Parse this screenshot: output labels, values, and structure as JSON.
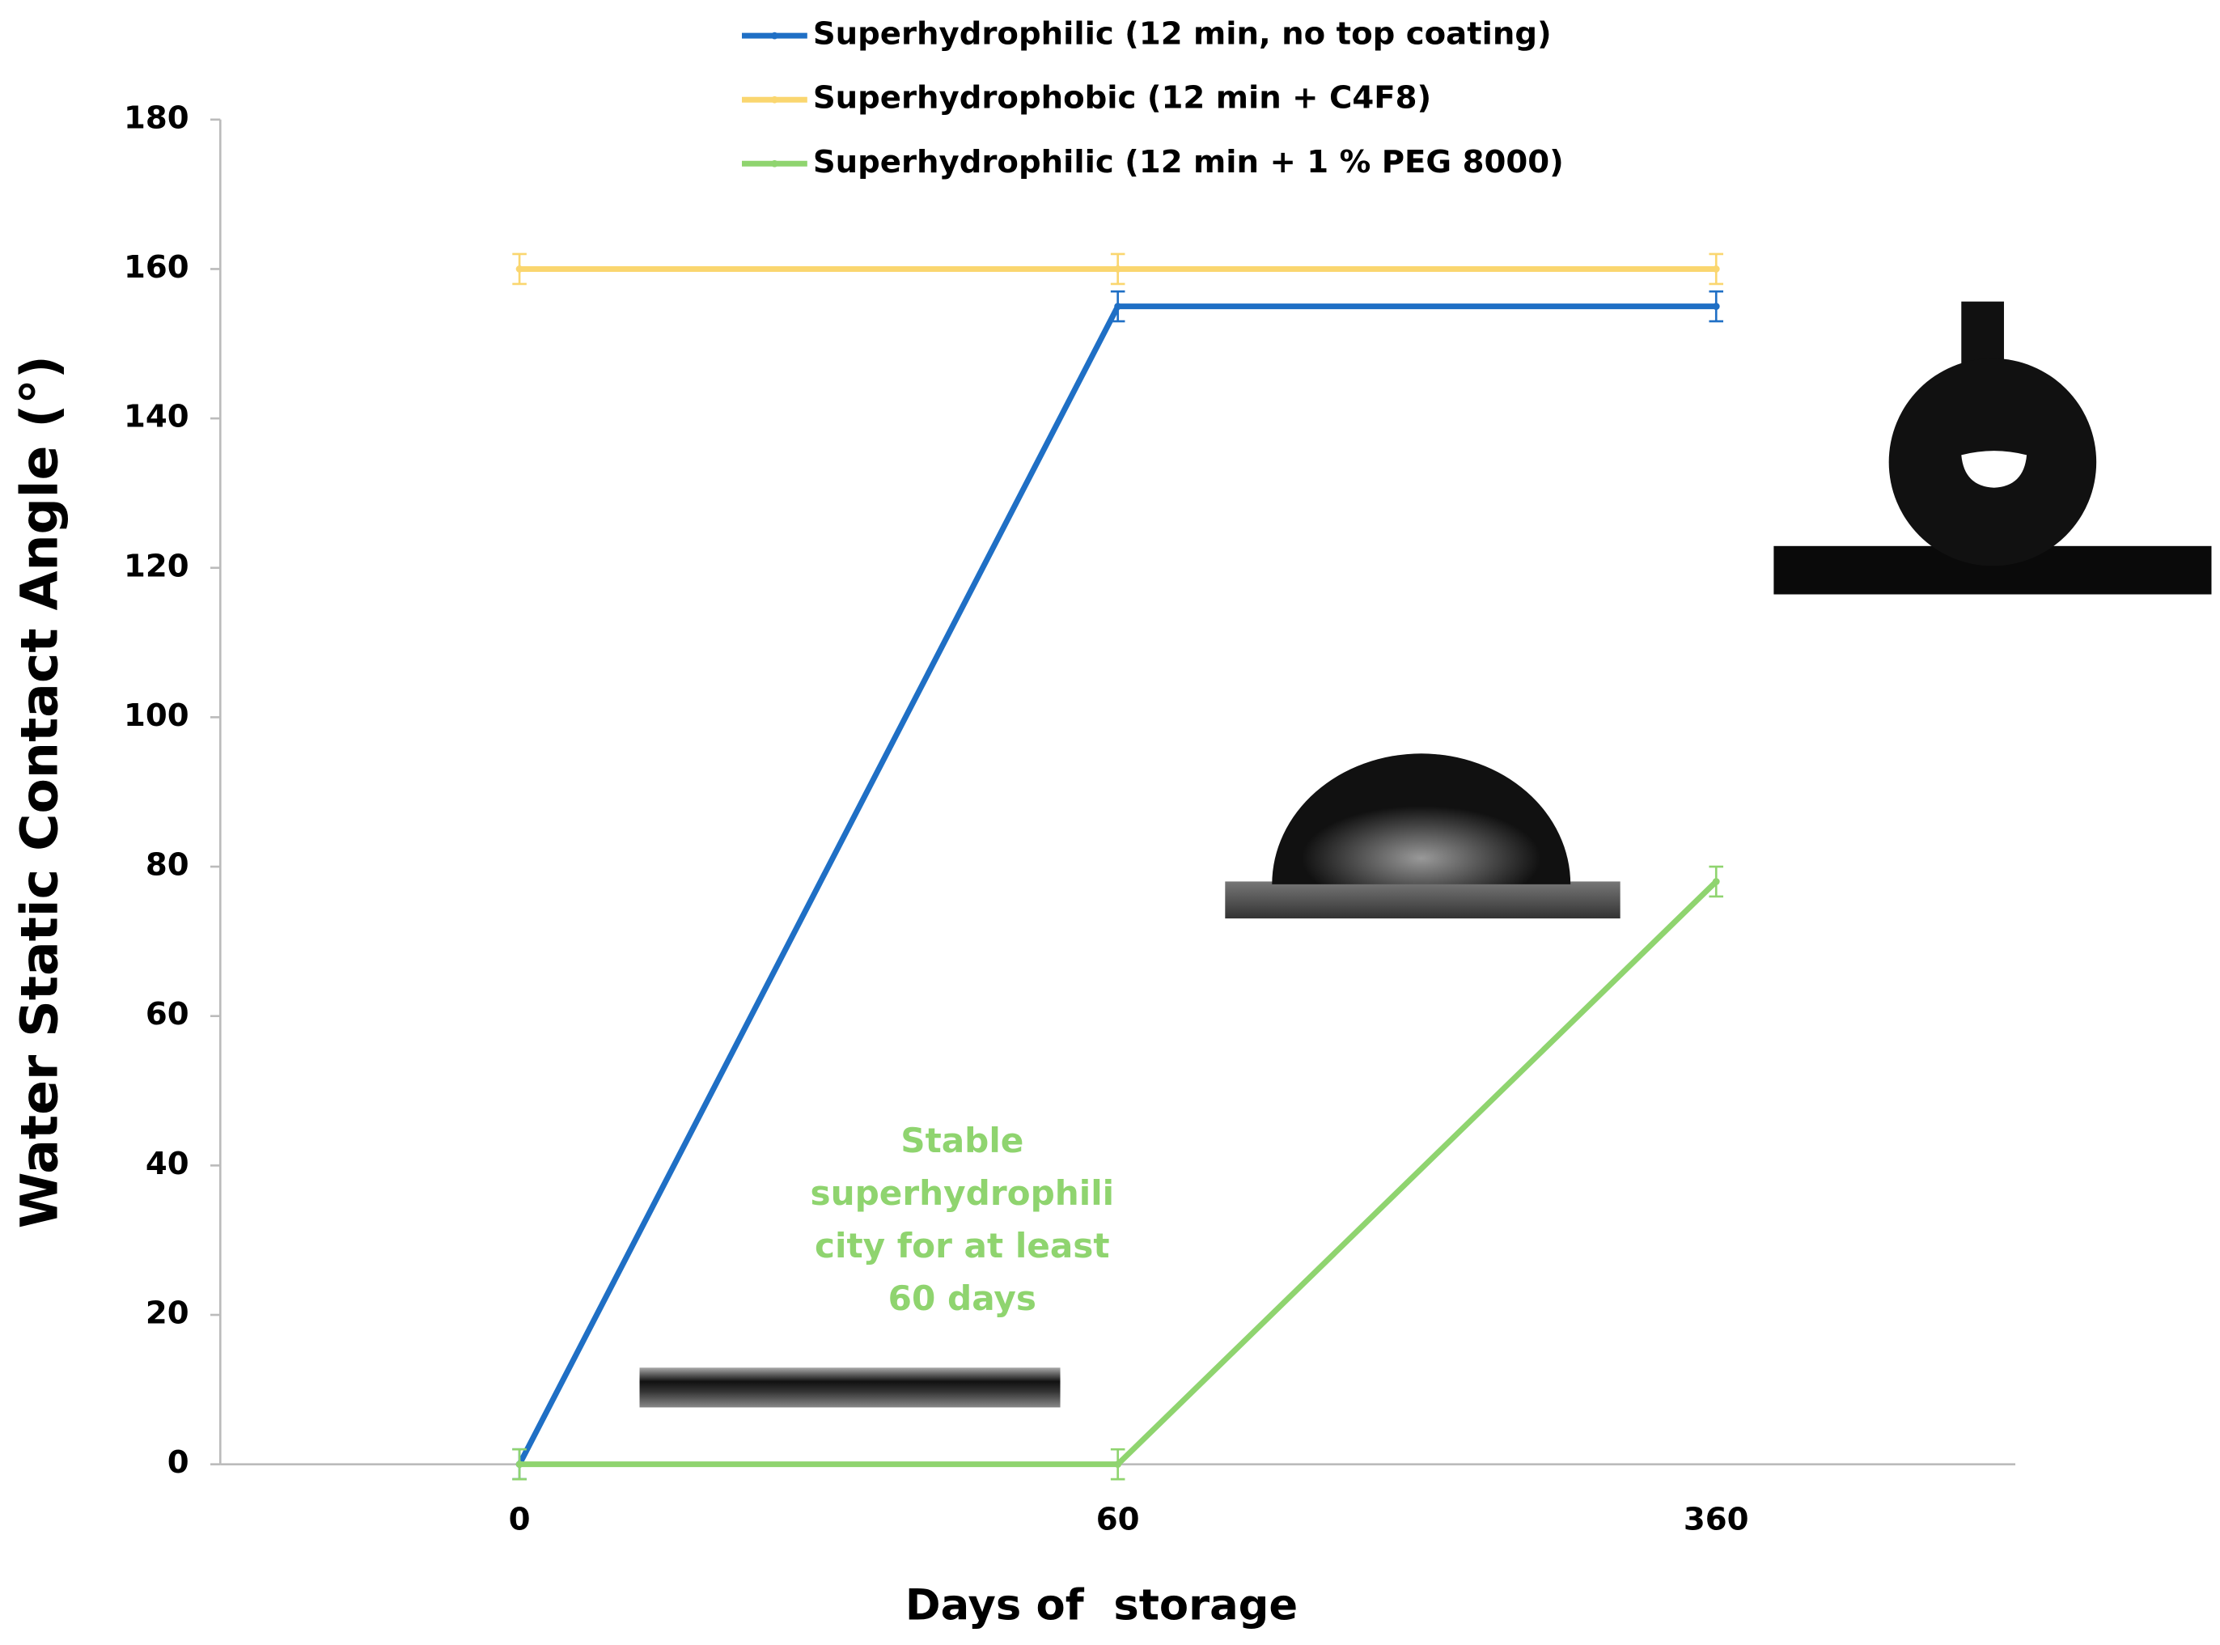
{
  "chart_data": {
    "type": "line",
    "ylabel": "Water Static Contact Angle (°)",
    "xlabel": "Days of  storage",
    "categories": [
      "0",
      "60",
      "360"
    ],
    "series": [
      {
        "name": "Superhydrophilic (12 min, no top coating)",
        "color": "#1f6fc5",
        "values": [
          0,
          155,
          155
        ],
        "errors": [
          2,
          2,
          2
        ]
      },
      {
        "name": "Superhydrophobic (12 min + C4F8)",
        "color": "#fad66f",
        "values": [
          160,
          160,
          160
        ],
        "errors": [
          2,
          2,
          2
        ]
      },
      {
        "name": "Superhydrophilic (12 min + 1 % PEG 8000)",
        "color": "#8fd46f",
        "values": [
          0,
          0,
          78
        ],
        "errors": [
          2,
          2,
          2
        ]
      }
    ],
    "ylim": [
      0,
      180
    ],
    "yticks": [
      0,
      20,
      40,
      60,
      80,
      100,
      120,
      140,
      160,
      180
    ],
    "grid": false,
    "annotation": {
      "lines": [
        "Stable",
        "superhydrophili",
        "city for at least",
        "60 days"
      ],
      "color": "#8fd46f"
    }
  }
}
